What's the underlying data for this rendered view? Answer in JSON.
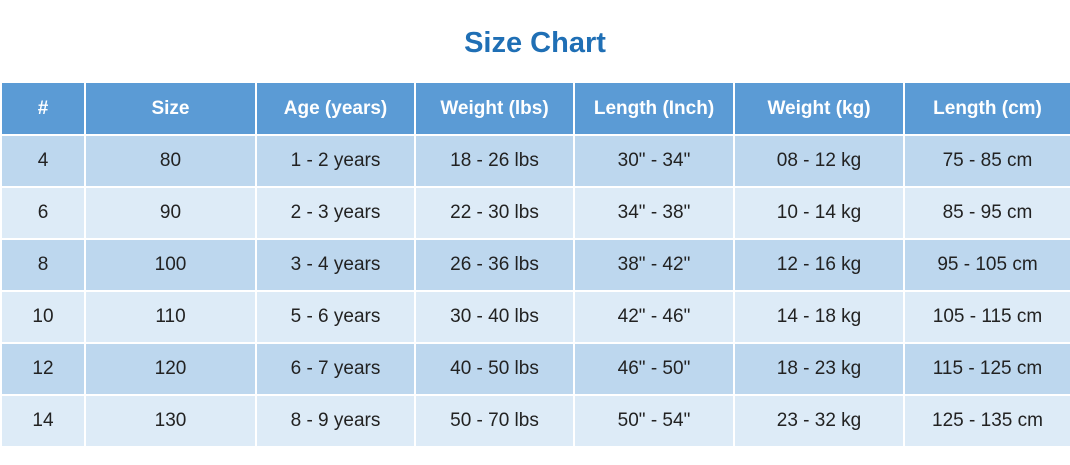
{
  "title": "Size Chart",
  "table": {
    "header": [
      "#",
      "Size",
      "Age (years)",
      "Weight (lbs)",
      "Length (Inch)",
      "Weight (kg)",
      "Length (cm)"
    ],
    "rows": [
      [
        "4",
        "80",
        "1 - 2 years",
        "18 - 26 lbs",
        "30\" - 34\"",
        "08 - 12 kg",
        "75 - 85 cm"
      ],
      [
        "6",
        "90",
        "2 - 3 years",
        "22 - 30 lbs",
        "34\" - 38\"",
        "10 - 14 kg",
        "85 - 95 cm"
      ],
      [
        "8",
        "100",
        "3 - 4 years",
        "26 - 36 lbs",
        "38\" - 42\"",
        "12 - 16 kg",
        "95 - 105 cm"
      ],
      [
        "10",
        "110",
        "5 - 6 years",
        "30 - 40 lbs",
        "42\" - 46\"",
        "14 - 18 kg",
        "105 - 115 cm"
      ],
      [
        "12",
        "120",
        "6 - 7 years",
        "40 - 50 lbs",
        "46\" - 50\"",
        "18 - 23 kg",
        "115 - 125 cm"
      ],
      [
        "14",
        "130",
        "8 - 9 years",
        "50 - 70 lbs",
        "50\" - 54\"",
        "23 - 32 kg",
        "125 - 135 cm"
      ]
    ]
  }
}
